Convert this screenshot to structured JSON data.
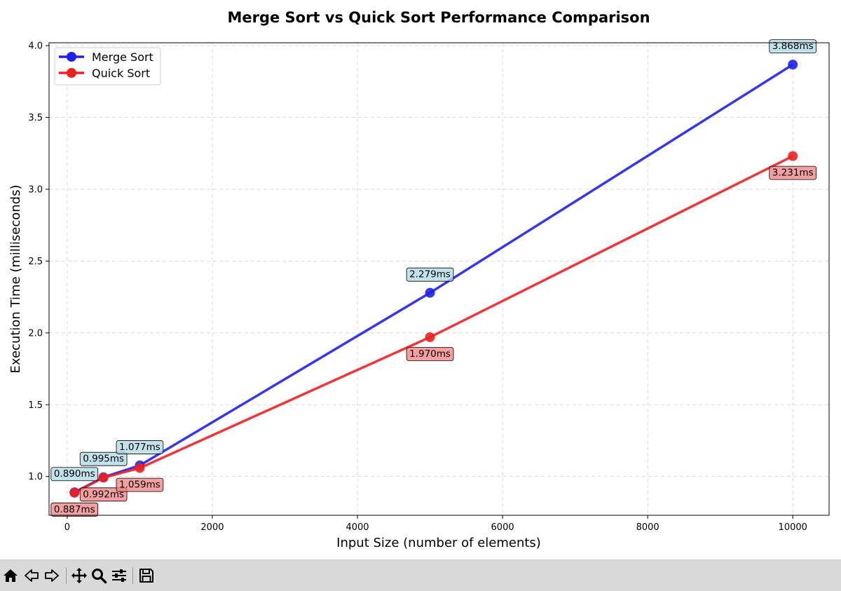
{
  "chart_data": {
    "type": "line",
    "title": "Merge Sort vs Quick Sort Performance Comparison",
    "xlabel": "Input Size (number of elements)",
    "ylabel": "Execution Time (milliseconds)",
    "xlim": [
      -250,
      10500
    ],
    "ylim": [
      0.73,
      4.02
    ],
    "xticks": [
      0,
      2000,
      4000,
      6000,
      8000,
      10000
    ],
    "yticks": [
      1.0,
      1.5,
      2.0,
      2.5,
      3.0,
      3.5,
      4.0
    ],
    "xtick_labels": [
      "0",
      "2000",
      "4000",
      "6000",
      "8000",
      "10000"
    ],
    "ytick_labels": [
      "1.0",
      "1.5",
      "2.0",
      "2.5",
      "3.0",
      "3.5",
      "4.0"
    ],
    "grid": true,
    "legend_position": "top-left",
    "x": [
      100,
      500,
      1000,
      5000,
      10000
    ],
    "series": [
      {
        "name": "Merge Sort",
        "color": "#2020ee",
        "label_bg": "#add8e6",
        "label_side": "above",
        "values": [
          0.89,
          0.995,
          1.077,
          2.279,
          3.868
        ],
        "labels": [
          "0.890ms",
          "0.995ms",
          "1.077ms",
          "2.279ms",
          "3.868ms"
        ]
      },
      {
        "name": "Quick Sort",
        "color": "#ee2020",
        "label_bg": "#f08080",
        "label_side": "below",
        "values": [
          0.887,
          0.992,
          1.059,
          1.97,
          3.231
        ],
        "labels": [
          "0.887ms",
          "0.992ms",
          "1.059ms",
          "1.970ms",
          "3.231ms"
        ]
      }
    ]
  },
  "toolbar": {
    "items": [
      "home-icon",
      "back-icon",
      "forward-icon",
      "pan-icon",
      "zoom-icon",
      "configure-icon",
      "save-icon"
    ]
  }
}
